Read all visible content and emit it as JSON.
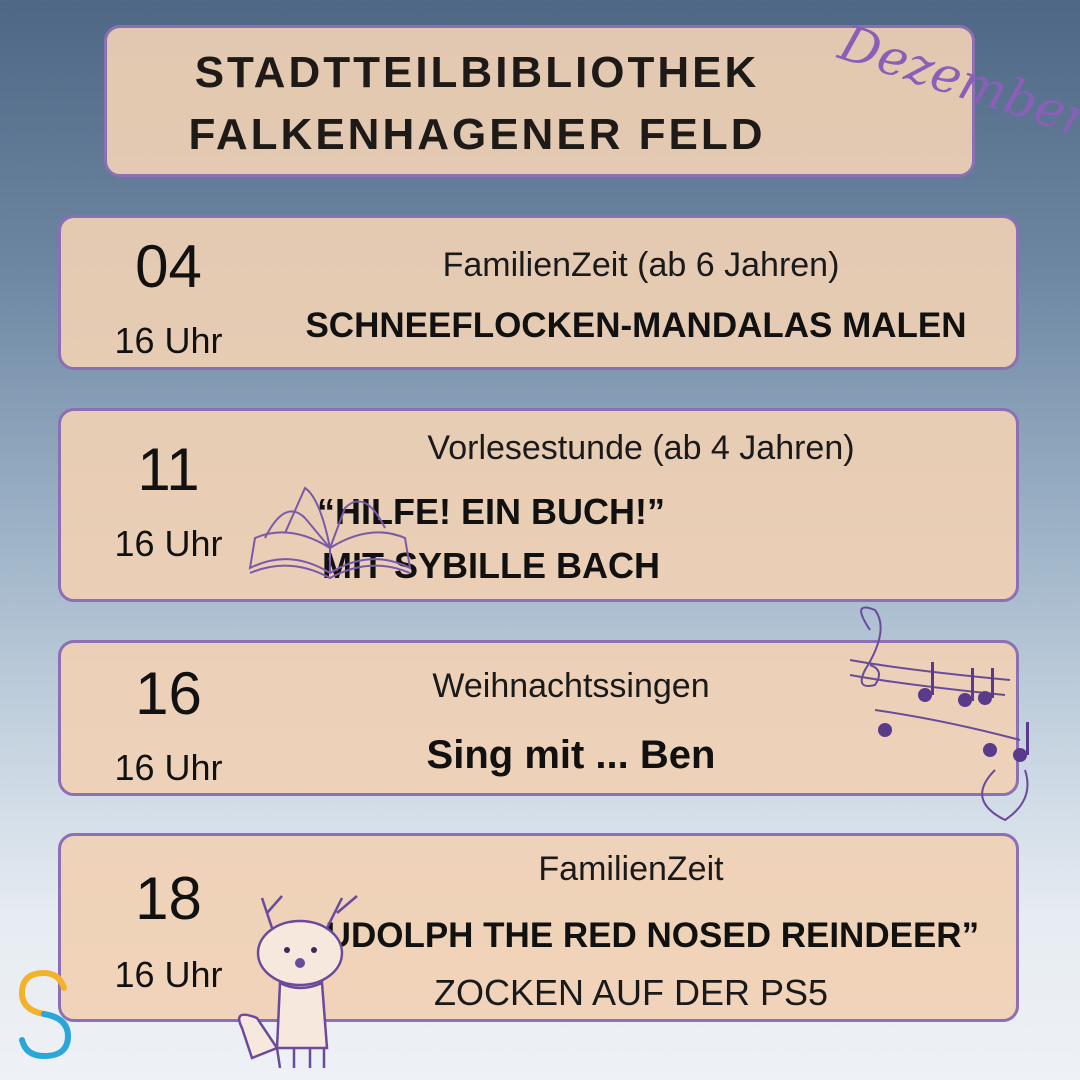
{
  "header": {
    "line1": "STADTTEILBIBLIOTHEK",
    "line2": "FALKENHAGENER FELD",
    "month": "Dezember"
  },
  "events": [
    {
      "day": "04",
      "time": "16 Uhr",
      "category": "FamilienZeit (ab 6 Jahren)",
      "title": "SCHNEEFLOCKEN-MANDALAS MALEN"
    },
    {
      "day": "11",
      "time": "16 Uhr",
      "category": "Vorlesestunde (ab 4 Jahren)",
      "title": "“HILFE! EIN BUCH!”",
      "title2": "MIT SYBILLE BACH"
    },
    {
      "day": "16",
      "time": "16 Uhr",
      "category": "Weihnachtssingen",
      "title": "Sing mit ... Ben"
    },
    {
      "day": "18",
      "time": "16 Uhr",
      "category": "FamilienZeit",
      "title": "“RUDOLPH THE RED NOSED REINDEER”",
      "title2": "ZOCKEN AUF DER PS5"
    }
  ],
  "colors": {
    "card": "#f0d0b4",
    "border": "#8d6fb5",
    "accent": "#8a5fb8"
  },
  "icons": [
    "book-icon",
    "music-notes-icon",
    "reindeer-icon",
    "s-logo-icon"
  ]
}
